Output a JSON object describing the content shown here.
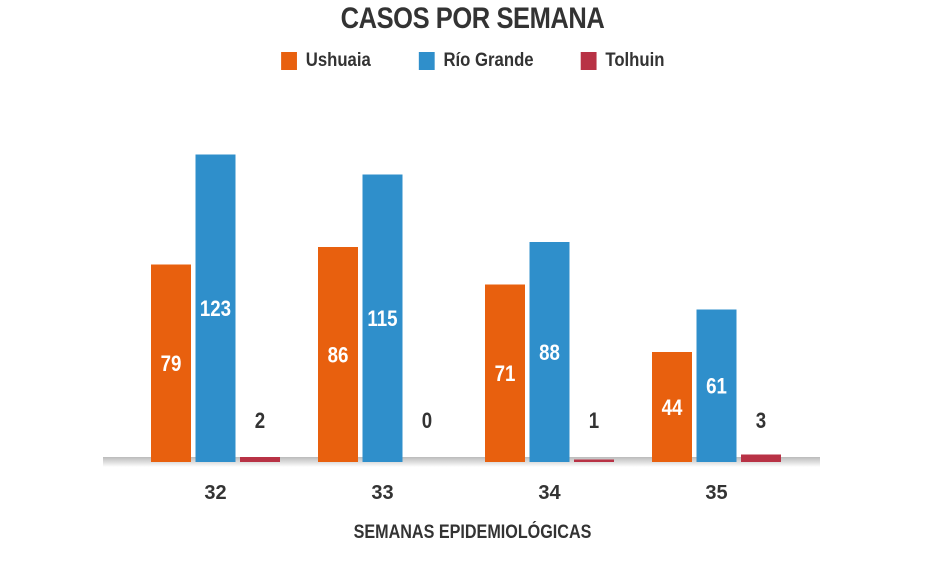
{
  "chart_data": {
    "type": "bar",
    "title": "CASOS POR SEMANA",
    "xlabel": "SEMANAS EPIDEMIOLÓGICAS",
    "ylabel": "",
    "categories": [
      "32",
      "33",
      "34",
      "35"
    ],
    "series": [
      {
        "name": "Ushuaia",
        "color": "#e8600e",
        "values": [
          79,
          86,
          71,
          44
        ]
      },
      {
        "name": "Río Grande",
        "color": "#2f8fcb",
        "values": [
          123,
          115,
          88,
          61
        ]
      },
      {
        "name": "Tolhuin",
        "color": "#b83245",
        "values": [
          2,
          0,
          1,
          3
        ]
      }
    ],
    "ylim": [
      0,
      125
    ],
    "grid": false,
    "legend": "top-center",
    "data_labels": true
  }
}
